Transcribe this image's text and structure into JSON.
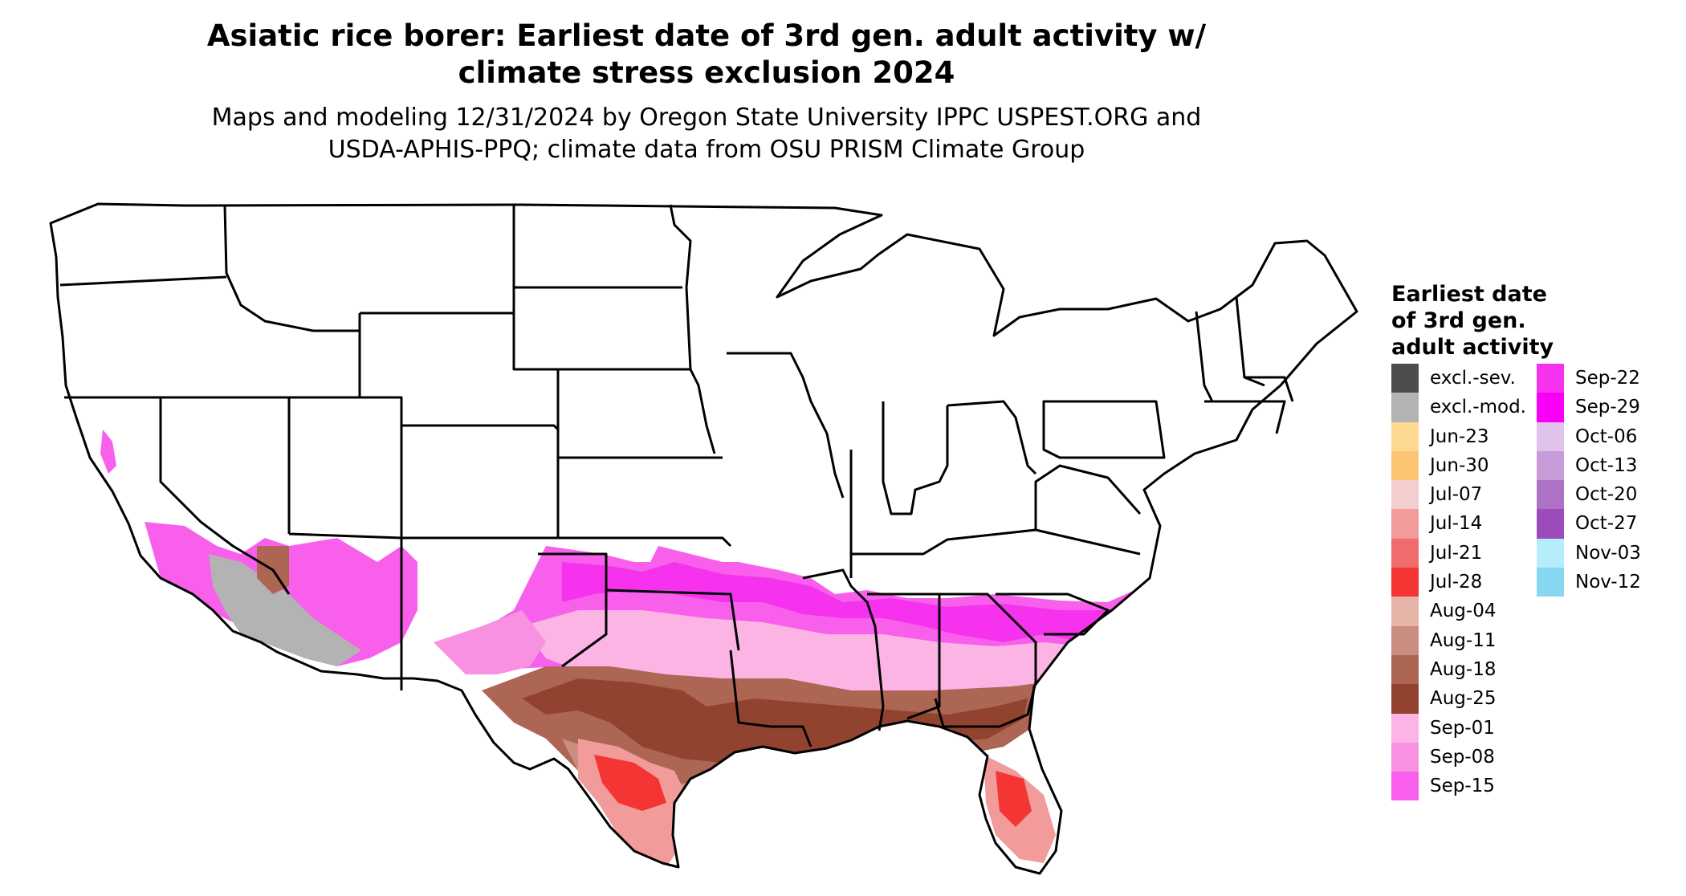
{
  "title": {
    "line1": "Asiatic rice borer: Earliest date of 3rd gen. adult activity w/",
    "line2": "climate stress exclusion 2024"
  },
  "subtitle": {
    "line1": "Maps and modeling 12/31/2024 by Oregon State University IPPC USPEST.ORG and",
    "line2": "USDA-APHIS-PPQ; climate data from OSU PRISM Climate Group"
  },
  "legend": {
    "title_lines": [
      "Earliest date",
      "of 3rd gen.",
      "adult activity"
    ],
    "items": [
      {
        "label": "excl.-sev.",
        "color": "#4d4d4d"
      },
      {
        "label": "excl.-mod.",
        "color": "#b3b3b3"
      },
      {
        "label": "Jun-23",
        "color": "#fdd990"
      },
      {
        "label": "Jun-30",
        "color": "#fdc473"
      },
      {
        "label": "Jul-07",
        "color": "#f4cdcf"
      },
      {
        "label": "Jul-14",
        "color": "#f19b9b"
      },
      {
        "label": "Jul-21",
        "color": "#f06b6b"
      },
      {
        "label": "Jul-28",
        "color": "#f53434"
      },
      {
        "label": "Aug-04",
        "color": "#e6b5a7"
      },
      {
        "label": "Aug-11",
        "color": "#c98e80"
      },
      {
        "label": "Aug-18",
        "color": "#ad6554"
      },
      {
        "label": "Aug-25",
        "color": "#91432f"
      },
      {
        "label": "Sep-01",
        "color": "#fbb4e3"
      },
      {
        "label": "Sep-08",
        "color": "#f991e2"
      },
      {
        "label": "Sep-15",
        "color": "#f860eb"
      },
      {
        "label": "Sep-22",
        "color": "#f632ef"
      },
      {
        "label": "Sep-29",
        "color": "#f800f7"
      },
      {
        "label": "Oct-06",
        "color": "#e0c2ea"
      },
      {
        "label": "Oct-13",
        "color": "#c79bd7"
      },
      {
        "label": "Oct-20",
        "color": "#ad72c6"
      },
      {
        "label": "Oct-27",
        "color": "#9c4cba"
      },
      {
        "label": "Nov-03",
        "color": "#b5edfb"
      },
      {
        "label": "Nov-12",
        "color": "#86d7f0"
      }
    ]
  }
}
